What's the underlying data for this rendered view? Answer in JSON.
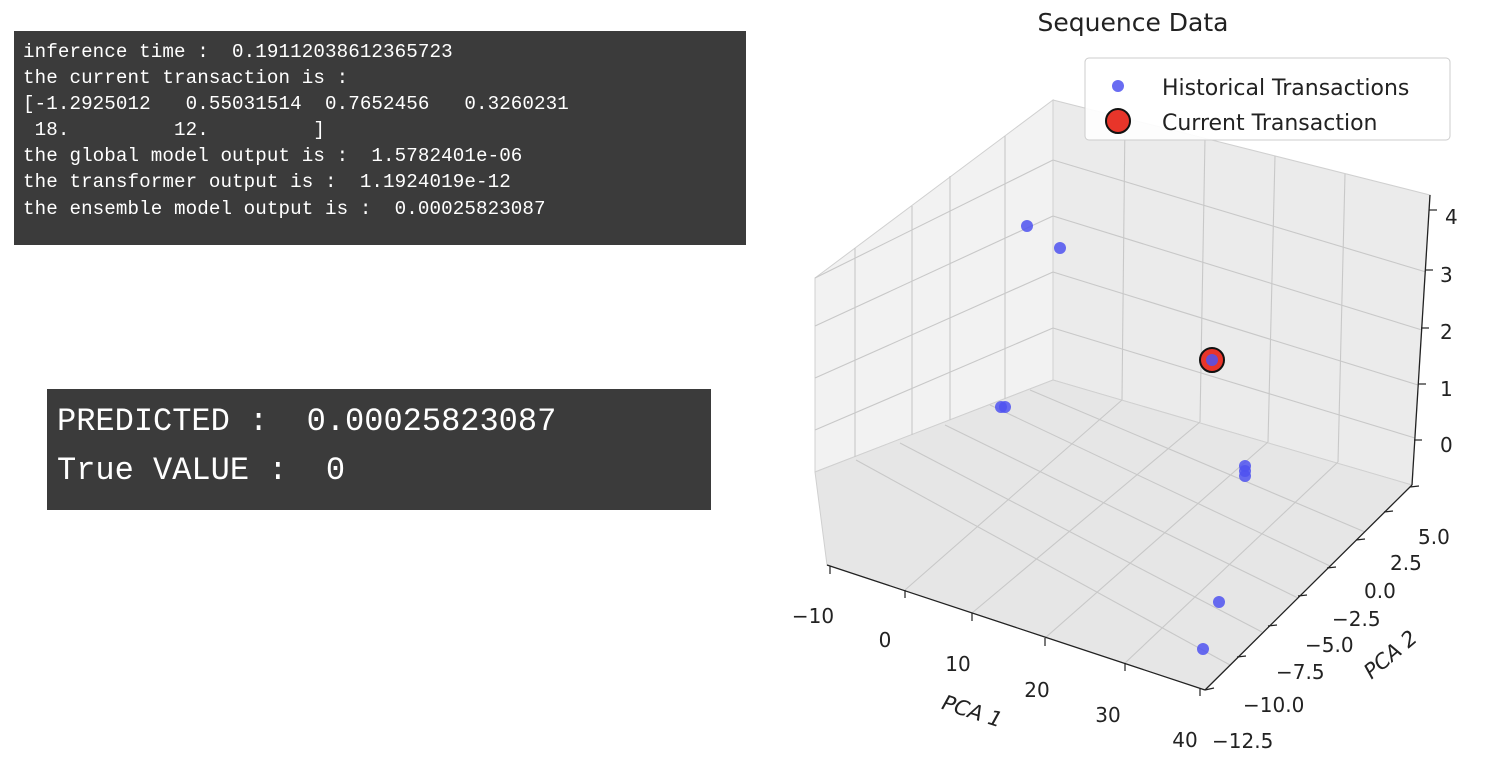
{
  "terminal": {
    "lines": [
      "inference time :  0.19112038612365723",
      "the current transaction is :",
      "[-1.2925012   0.55031514  0.7652456   0.3260231",
      " 18.         12.         ]",
      "the global model output is :  1.5782401e-06",
      "the transformer output is :  1.1924019e-12",
      "the ensemble model output is :  0.00025823087"
    ]
  },
  "prediction": {
    "predicted_line": "PREDICTED :  0.00025823087",
    "true_line": "True VALUE :  0"
  },
  "colors": {
    "terminal_bg": "#3b3b3b",
    "historical_point": "#4f52f0",
    "current_point": "#e8352a"
  },
  "chart_data": {
    "type": "scatter",
    "title": "Sequence Data",
    "xlabel": "PCA 1",
    "ylabel": "PCA 2",
    "zlabel": "",
    "x_ticks": [
      "−10",
      "0",
      "10",
      "20",
      "30",
      "40"
    ],
    "y_ticks": [
      "−12.5",
      "−10.0",
      "−7.5",
      "−5.0",
      "−2.5",
      "0.0",
      "2.5",
      "5.0"
    ],
    "z_ticks": [
      "0",
      "1",
      "2",
      "3",
      "4"
    ],
    "legend": {
      "placement": "top-right",
      "entries": [
        "Historical Transactions",
        "Current Transaction"
      ]
    },
    "grid": true,
    "series": [
      {
        "name": "Historical Transactions",
        "points": [
          {
            "x": -10,
            "y": 5.0,
            "z": 4.1
          },
          {
            "x": -8,
            "y": 3.5,
            "z": 3.9
          },
          {
            "x": -10,
            "y": -4.0,
            "z": 1.5
          },
          {
            "x": -10,
            "y": -4.0,
            "z": 1.52
          },
          {
            "x": 25,
            "y": 5.0,
            "z": 1.6
          },
          {
            "x": 35,
            "y": 2.5,
            "z": 0.5
          },
          {
            "x": 35,
            "y": 2.3,
            "z": 0.45
          },
          {
            "x": 35,
            "y": 2.1,
            "z": 0.4
          },
          {
            "x": 38,
            "y": -4.5,
            "z": 0.3
          },
          {
            "x": 36,
            "y": -7.0,
            "z": 0.15
          }
        ]
      },
      {
        "name": "Current Transaction",
        "points": [
          {
            "x": 25,
            "y": 5.0,
            "z": 1.6
          }
        ]
      }
    ]
  }
}
